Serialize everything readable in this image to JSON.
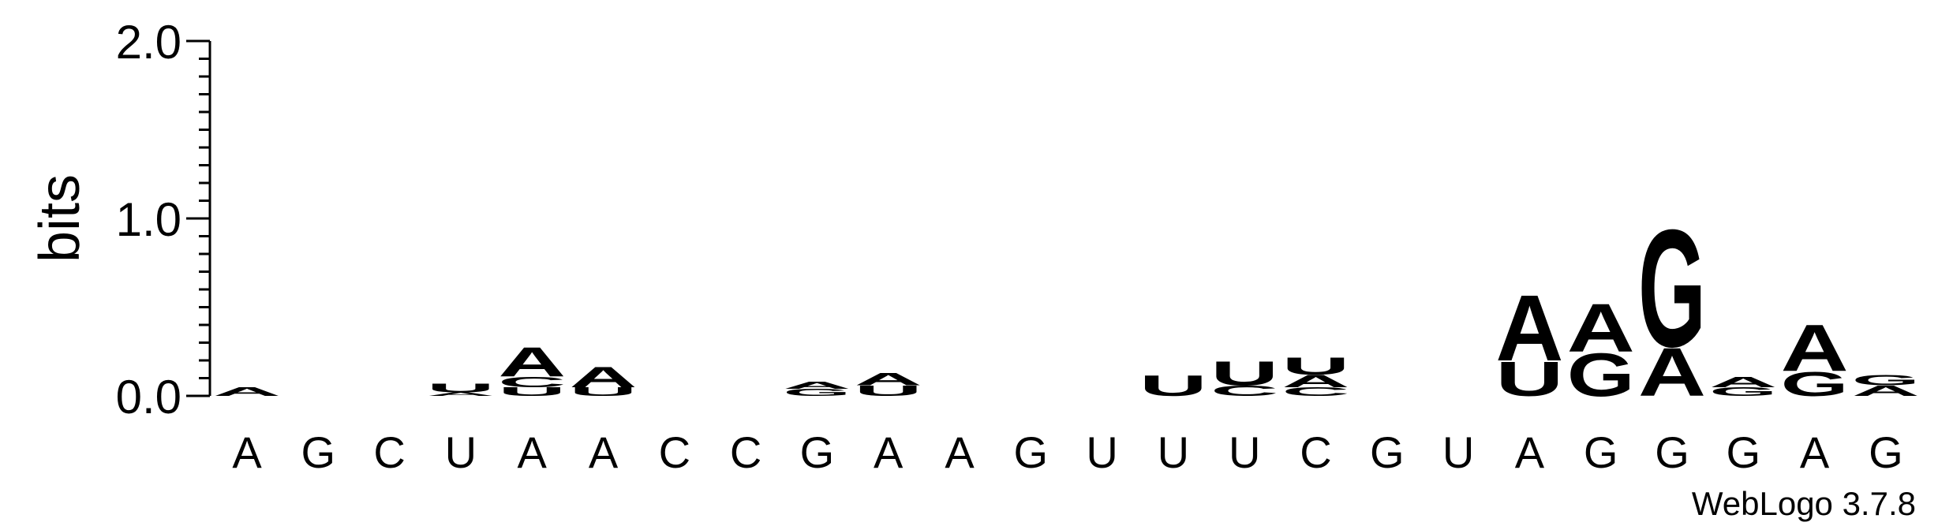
{
  "chart_data": {
    "type": "sequence-logo",
    "ylabel": "bits",
    "ylim": [
      0,
      2.0
    ],
    "yticks": [
      {
        "value": 0.0,
        "label": "0.0"
      },
      {
        "value": 1.0,
        "label": "1.0"
      },
      {
        "value": 2.0,
        "label": "2.0"
      }
    ],
    "minor_tick_step": 0.1,
    "colors": {
      "A": "#f7931e",
      "U": "#f7931e",
      "G": "#0000ee",
      "C": "#0000ee"
    },
    "positions": [
      {
        "label": "A",
        "stack": [
          [
            "A",
            0.05
          ]
        ]
      },
      {
        "label": "G",
        "stack": []
      },
      {
        "label": "C",
        "stack": []
      },
      {
        "label": "U",
        "stack": [
          [
            "A",
            0.02
          ],
          [
            "U",
            0.05
          ]
        ]
      },
      {
        "label": "A",
        "stack": [
          [
            "U",
            0.05
          ],
          [
            "C",
            0.06
          ],
          [
            "A",
            0.17
          ]
        ]
      },
      {
        "label": "A",
        "stack": [
          [
            "U",
            0.05
          ],
          [
            "A",
            0.12
          ]
        ]
      },
      {
        "label": "C",
        "stack": []
      },
      {
        "label": "C",
        "stack": []
      },
      {
        "label": "G",
        "stack": [
          [
            "G",
            0.04
          ],
          [
            "A",
            0.04
          ]
        ]
      },
      {
        "label": "A",
        "stack": [
          [
            "U",
            0.06
          ],
          [
            "A",
            0.07
          ]
        ]
      },
      {
        "label": "A",
        "stack": []
      },
      {
        "label": "G",
        "stack": []
      },
      {
        "label": "U",
        "stack": []
      },
      {
        "label": "U",
        "stack": [
          [
            "U",
            0.12
          ]
        ]
      },
      {
        "label": "U",
        "stack": [
          [
            "C",
            0.06
          ],
          [
            "U",
            0.14
          ]
        ]
      },
      {
        "label": "C",
        "stack": [
          [
            "C",
            0.05
          ],
          [
            "A",
            0.07
          ],
          [
            "U",
            0.1
          ]
        ]
      },
      {
        "label": "G",
        "stack": []
      },
      {
        "label": "U",
        "stack": []
      },
      {
        "label": "A",
        "stack": [
          [
            "U",
            0.2
          ],
          [
            "A",
            0.38
          ]
        ]
      },
      {
        "label": "G",
        "stack": [
          [
            "G",
            0.25
          ],
          [
            "A",
            0.28
          ]
        ]
      },
      {
        "label": "G",
        "stack": [
          [
            "A",
            0.28
          ],
          [
            "G",
            0.68
          ]
        ]
      },
      {
        "label": "G",
        "stack": [
          [
            "G",
            0.05
          ],
          [
            "A",
            0.06
          ]
        ]
      },
      {
        "label": "A",
        "stack": [
          [
            "G",
            0.14
          ],
          [
            "A",
            0.27
          ]
        ]
      },
      {
        "label": "G",
        "stack": [
          [
            "A",
            0.06
          ],
          [
            "G",
            0.06
          ]
        ]
      }
    ]
  },
  "footer": "WebLogo 3.7.8"
}
